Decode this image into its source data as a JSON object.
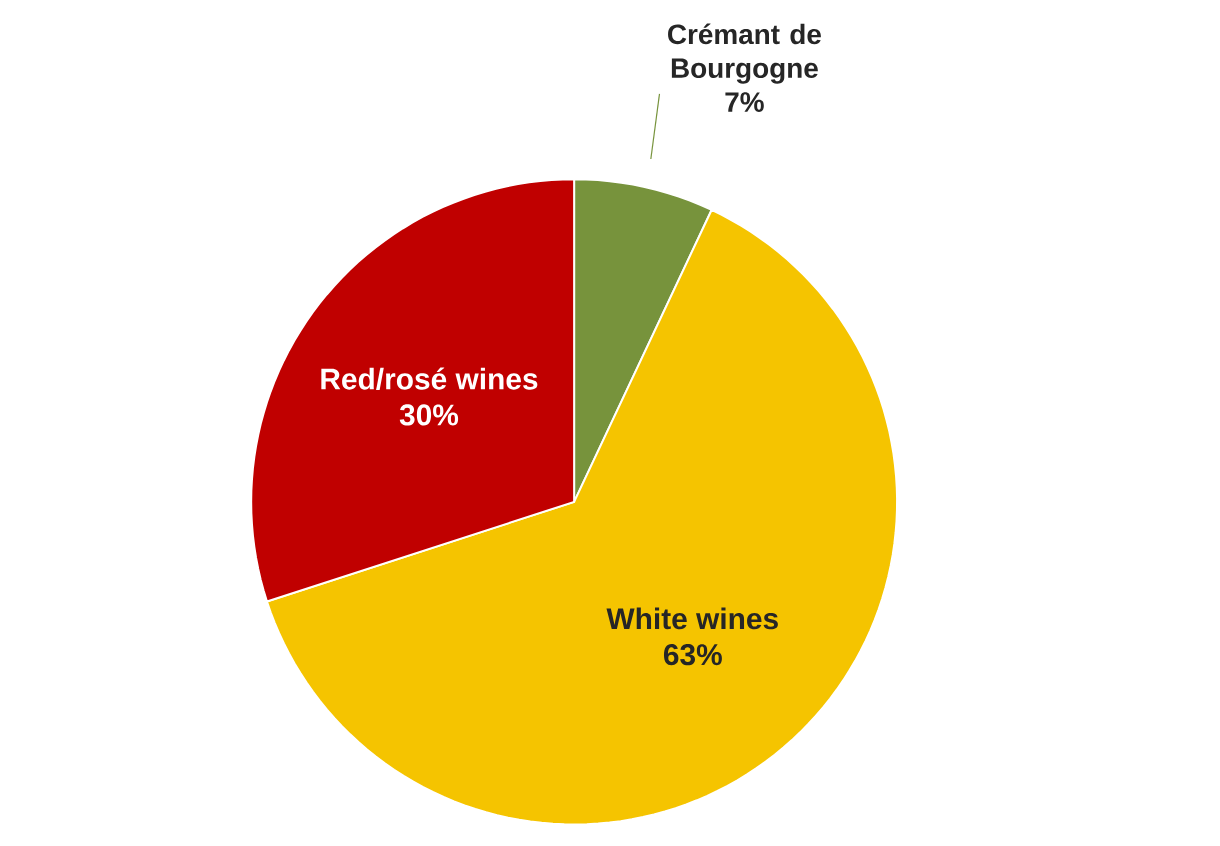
{
  "chart_data": {
    "type": "pie",
    "categories": [
      "Crémant de Bourgogne",
      "White wines",
      "Red/rosé wines"
    ],
    "values": [
      7,
      63,
      30
    ],
    "value_labels": [
      "7%",
      "63%",
      "30%"
    ],
    "colors": [
      "#77933c",
      "#f5c400",
      "#c00000"
    ]
  }
}
